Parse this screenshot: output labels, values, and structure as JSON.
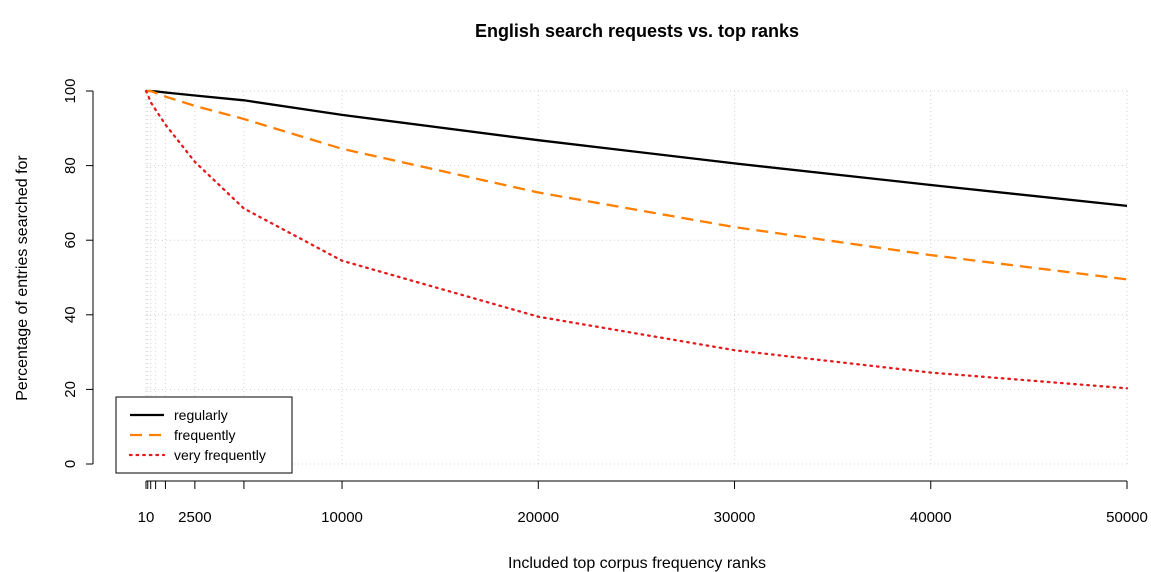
{
  "chart_data": {
    "type": "line",
    "title": "English search requests vs. top ranks",
    "xlabel": "Included top corpus frequency ranks",
    "ylabel": "Percentage of entries searched for",
    "xlim": [
      10,
      50000
    ],
    "ylim": [
      0,
      100
    ],
    "grid": true,
    "legend_position": "bottom-left",
    "x_tick_labels": [
      {
        "value": 10,
        "label": "10"
      },
      {
        "value": 2500,
        "label": "2500"
      },
      {
        "value": 10000,
        "label": "10000"
      },
      {
        "value": 20000,
        "label": "20000"
      },
      {
        "value": 30000,
        "label": "30000"
      },
      {
        "value": 40000,
        "label": "40000"
      },
      {
        "value": 50000,
        "label": "50000"
      }
    ],
    "x_ticks": [
      10,
      100,
      250,
      500,
      1000,
      2500,
      5000,
      10000,
      20000,
      30000,
      40000,
      50000
    ],
    "y_ticks": [
      0,
      20,
      40,
      60,
      80,
      100
    ],
    "series": [
      {
        "name": "regularly",
        "color": "#000000",
        "line_style": "solid",
        "x": [
          10,
          100,
          250,
          500,
          1000,
          2500,
          5000,
          10000,
          20000,
          30000,
          40000,
          50000
        ],
        "values": [
          100,
          100,
          100,
          99.9,
          99.6,
          98.8,
          97.5,
          93.6,
          86.8,
          80.6,
          74.8,
          69.2
        ]
      },
      {
        "name": "frequently",
        "color": "#ff7f00",
        "line_style": "dashed",
        "x": [
          10,
          100,
          250,
          500,
          1000,
          2500,
          5000,
          10000,
          20000,
          30000,
          40000,
          50000
        ],
        "values": [
          100,
          100,
          100,
          99.5,
          98.5,
          96,
          92.5,
          84.5,
          72.8,
          63.5,
          56,
          49.5
        ]
      },
      {
        "name": "very frequently",
        "color": "#e41a1c",
        "line_style": "dotted",
        "x": [
          10,
          100,
          250,
          500,
          1000,
          2500,
          5000,
          10000,
          20000,
          30000,
          40000,
          50000
        ],
        "values": [
          100,
          99,
          97,
          95,
          91,
          81,
          68.5,
          54.5,
          39.5,
          30.5,
          24.5,
          20.3
        ]
      }
    ]
  }
}
